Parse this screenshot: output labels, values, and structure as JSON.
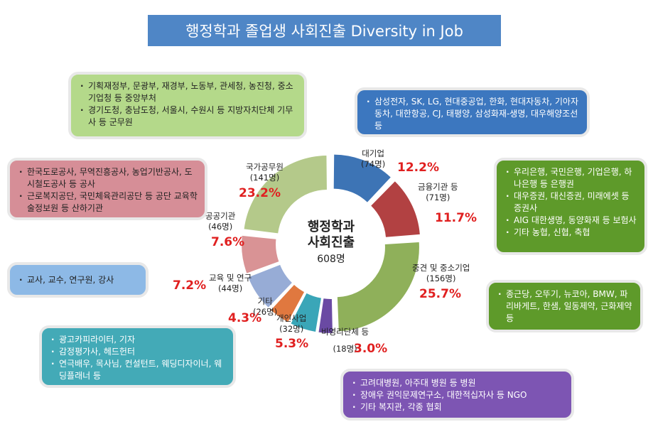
{
  "title": "행정학과 졸업생 사회진출 Diversity in Job",
  "center": {
    "line1": "행정학과",
    "line2": "사회진출",
    "total": "608명"
  },
  "chart_data": {
    "type": "pie",
    "title": "행정학과 졸업생 사회진출 Diversity in Job",
    "total": 608,
    "slices": [
      {
        "name": "대기업",
        "count_label": "(74명)",
        "value": 74,
        "percent": "12.2%",
        "color": "#3d74b5"
      },
      {
        "name": "금융기관 등",
        "count_label": "(71명)",
        "value": 71,
        "percent": "11.7%",
        "color": "#b24142"
      },
      {
        "name": "중견 및 중소기업",
        "count_label": "(156명)",
        "value": 156,
        "percent": "25.7%",
        "color": "#8fb05a"
      },
      {
        "name": "비영리단체 등",
        "count_label": "(18명)",
        "value": 18,
        "percent": "3.0%",
        "color": "#6a4aa3"
      },
      {
        "name": "개인사업",
        "count_label": "(32명)",
        "value": 32,
        "percent": "5.3%",
        "color": "#3aa6b8"
      },
      {
        "name": "기타",
        "count_label": "(26명)",
        "value": 26,
        "percent": "4.3%",
        "color": "#e0783f"
      },
      {
        "name": "교육 및 연구",
        "count_label": "(44명)",
        "value": 44,
        "percent": "7.2%",
        "color": "#97acd6"
      },
      {
        "name": "공공기관",
        "count_label": "(46명)",
        "value": 46,
        "percent": "7.6%",
        "color": "#d99395"
      },
      {
        "name": "국가공무원",
        "count_label": "(141명)",
        "value": 141,
        "percent": "23.2%",
        "color": "#b4c98a"
      }
    ]
  },
  "boxes": {
    "gov": [
      "기획재정부, 문광부, 재경부, 노동부, 관세청, 농진청, 중소기업청 등 중앙부처",
      "경기도청, 충남도청, 서울시, 수원시 등 지방자치단체 기무사 등 군무원"
    ],
    "large": [
      "삼성전자, SK, LG, 현대중공업, 한화, 현대자동차, 기아자동차, 대한항공, CJ, 태평양, 삼성화재-생명, 대우해양조선 등"
    ],
    "public": [
      "한국도로공사, 무역진흥공사, 농업기반공사, 도시철도공사 등 공사",
      "근로복지공단, 국민체육관리공단 등 공단 교육학술정보원 등 산하기관"
    ],
    "finance": [
      "우리은행, 국민은행, 기업은행, 하나은행 등 은행권",
      "대우증권, 대신증권, 미래에셋 등 증권사",
      "AIG 대한생명, 동양화재 등 보험사",
      "기타 농협, 신협, 축협"
    ],
    "edu": [
      "교사, 교수, 연구원, 강사"
    ],
    "sme": [
      "종근당, 오뚜기, 뉴코아, BMW, 파리바게트, 한샘, 일동제약, 근화제약 등"
    ],
    "personal": [
      "광고카피라이터, 기자",
      "감정평가사, 헤드헌터",
      "연극배우, 목사님, 컨설턴트, 웨딩디자이너, 웨딩플래너 등"
    ],
    "nonprofit": [
      "고려대병원, 아주대 병원 등 병원",
      "장애우 권익문제연구소, 대한적십자사 등 NGO",
      "기타 복지관, 각종 협회"
    ]
  }
}
